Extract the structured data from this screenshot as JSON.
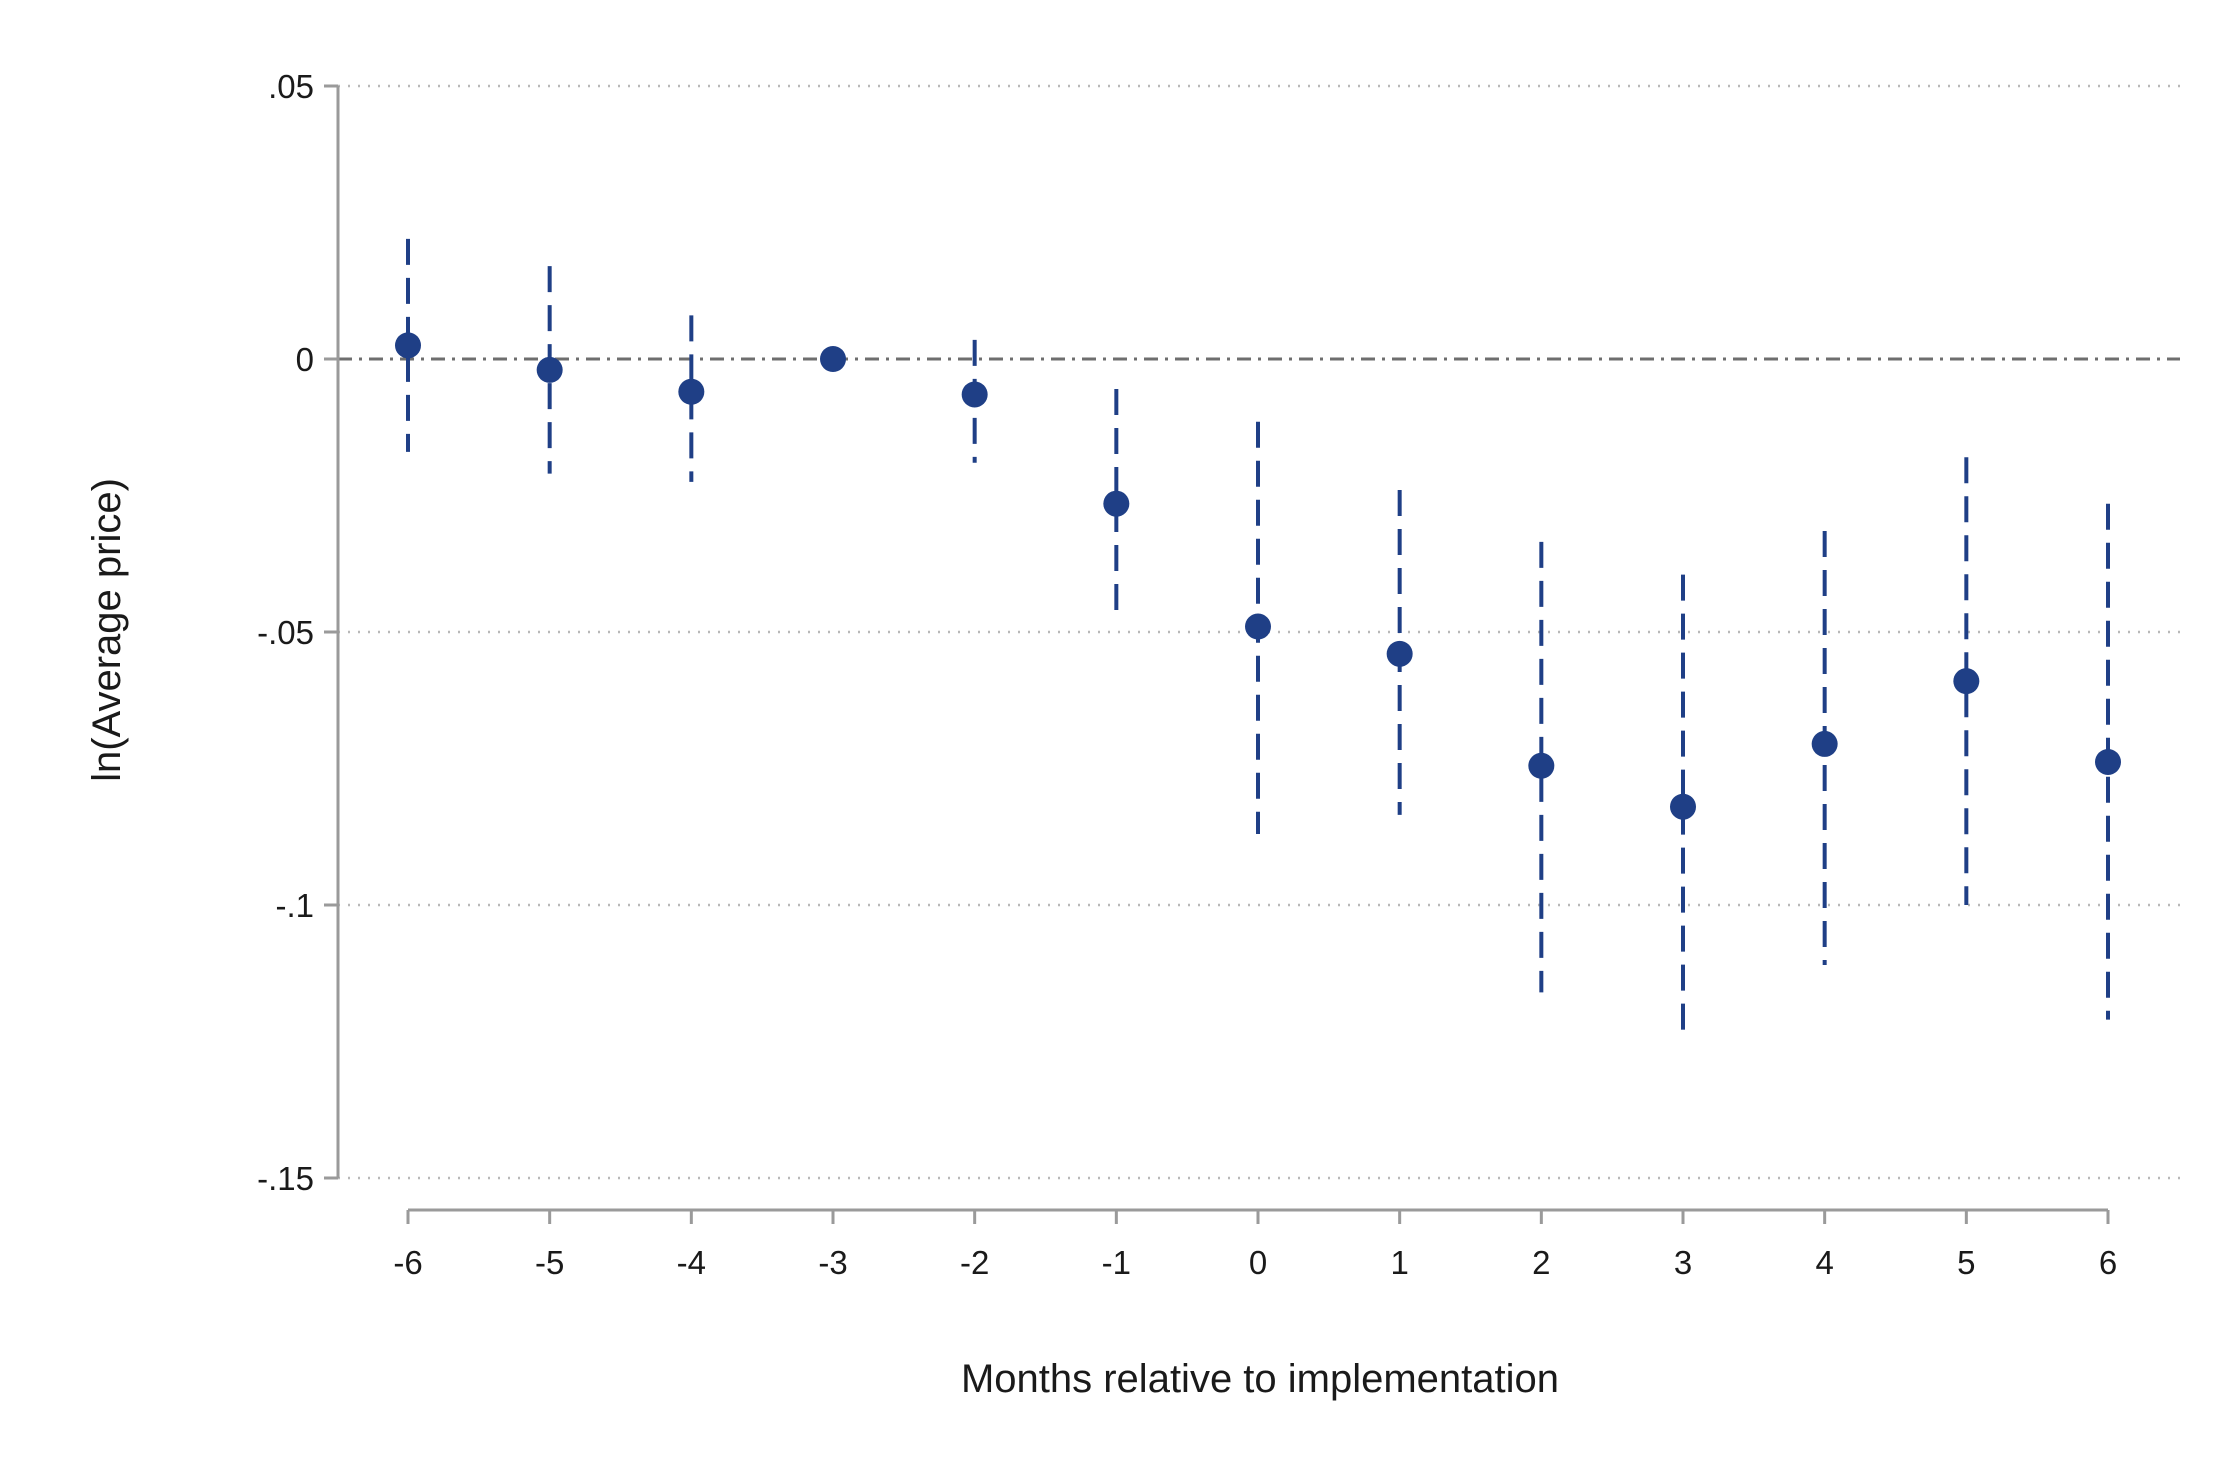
{
  "chart_data": {
    "type": "scatter",
    "title": "",
    "xlabel": "Months relative to implementation",
    "ylabel": "ln(Average price)",
    "xlim": [
      -6.5,
      6.5
    ],
    "ylim": [
      -0.15,
      0.05
    ],
    "x_ticks": [
      -6,
      -5,
      -4,
      -3,
      -2,
      -1,
      0,
      1,
      2,
      3,
      4,
      5,
      6
    ],
    "x_tick_labels": [
      "-6",
      "-5",
      "-4",
      "-3",
      "-2",
      "-1",
      "0",
      "1",
      "2",
      "3",
      "4",
      "5",
      "6"
    ],
    "y_ticks": [
      0.05,
      0,
      -0.05,
      -0.1,
      -0.15
    ],
    "y_tick_labels": [
      ".05",
      "0",
      "-.05",
      "-.1",
      "-.15"
    ],
    "grid": "horizontal dotted",
    "reference_line": 0,
    "colors": {
      "marker": "#1f3f86",
      "ci": "#1f3f86",
      "axis": "#9a9a9a",
      "grid": "#b8b8b8",
      "zero_line": "#6e6e6e"
    },
    "points": [
      {
        "x": -6,
        "y": 0.0025,
        "ci_low": -0.017,
        "ci_high": 0.022
      },
      {
        "x": -5,
        "y": -0.002,
        "ci_low": -0.021,
        "ci_high": 0.017
      },
      {
        "x": -4,
        "y": -0.006,
        "ci_low": -0.0225,
        "ci_high": 0.008
      },
      {
        "x": -3,
        "y": 0.0,
        "ci_low": 0.0,
        "ci_high": 0.0
      },
      {
        "x": -2,
        "y": -0.0065,
        "ci_low": -0.019,
        "ci_high": 0.0035
      },
      {
        "x": -1,
        "y": -0.0265,
        "ci_low": -0.048,
        "ci_high": -0.0055
      },
      {
        "x": 0,
        "y": -0.049,
        "ci_low": -0.087,
        "ci_high": -0.0115
      },
      {
        "x": 1,
        "y": -0.054,
        "ci_low": -0.0835,
        "ci_high": -0.024
      },
      {
        "x": 2,
        "y": -0.0745,
        "ci_low": -0.116,
        "ci_high": -0.0335
      },
      {
        "x": 3,
        "y": -0.082,
        "ci_low": -0.125,
        "ci_high": -0.0395
      },
      {
        "x": 4,
        "y": -0.0705,
        "ci_low": -0.111,
        "ci_high": -0.0315
      },
      {
        "x": 5,
        "y": -0.059,
        "ci_low": -0.1,
        "ci_high": -0.018
      },
      {
        "x": 6,
        "y": -0.0738,
        "ci_low": -0.121,
        "ci_high": -0.0265
      }
    ]
  }
}
